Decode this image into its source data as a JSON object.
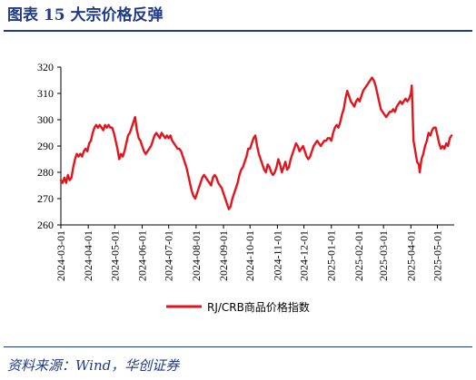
{
  "header": {
    "title": "图表 15   大宗价格反弹"
  },
  "footer": {
    "source": "资料来源：Wind，华创证券"
  },
  "chart_data": {
    "type": "line",
    "title": "图表 15   大宗价格反弹",
    "xlabel": "",
    "ylabel": "",
    "ylim": [
      260,
      320
    ],
    "yticks": [
      260,
      270,
      280,
      290,
      300,
      310,
      320
    ],
    "xlim": [
      "2024-03-01",
      "2025-05-20"
    ],
    "xticks": [
      "2024-03-01",
      "2024-04-01",
      "2024-05-01",
      "2024-06-01",
      "2024-07-01",
      "2024-08-01",
      "2024-09-01",
      "2024-10-01",
      "2024-11-01",
      "2024-12-01",
      "2025-01-01",
      "2025-02-01",
      "2025-03-01",
      "2025-04-01",
      "2025-05-01"
    ],
    "xtick_labels": [
      "2024-03-01",
      "2024-04-01",
      "2024-05-01",
      "2024-06-01",
      "2024-07-01",
      "2024-08-01",
      "2024-09-01",
      "2024-10-01",
      "2024-11-01",
      "2024-12-01",
      "2025-01-01",
      "2025-02-01",
      "2025-03-01",
      "2025-04-01",
      "2025-05-01"
    ],
    "grid": false,
    "legend_position": "bottom-center",
    "series": [
      {
        "name": "RJ/CRB商品价格指数",
        "color": "#e3141c",
        "points": [
          [
            "2024-03-01",
            277
          ],
          [
            "2024-03-03",
            276
          ],
          [
            "2024-03-05",
            278
          ],
          [
            "2024-03-07",
            276
          ],
          [
            "2024-03-09",
            279
          ],
          [
            "2024-03-11",
            277
          ],
          [
            "2024-03-13",
            278
          ],
          [
            "2024-03-15",
            282
          ],
          [
            "2024-03-17",
            285
          ],
          [
            "2024-03-19",
            287
          ],
          [
            "2024-03-21",
            286
          ],
          [
            "2024-03-23",
            287
          ],
          [
            "2024-03-25",
            286
          ],
          [
            "2024-03-27",
            288
          ],
          [
            "2024-03-29",
            289
          ],
          [
            "2024-03-31",
            288
          ],
          [
            "2024-04-02",
            291
          ],
          [
            "2024-04-04",
            292
          ],
          [
            "2024-04-06",
            295
          ],
          [
            "2024-04-08",
            297
          ],
          [
            "2024-04-10",
            298
          ],
          [
            "2024-04-12",
            297
          ],
          [
            "2024-04-14",
            298
          ],
          [
            "2024-04-16",
            297
          ],
          [
            "2024-04-18",
            296
          ],
          [
            "2024-04-20",
            298
          ],
          [
            "2024-04-22",
            297
          ],
          [
            "2024-04-24",
            298
          ],
          [
            "2024-04-26",
            297
          ],
          [
            "2024-04-28",
            297
          ],
          [
            "2024-04-30",
            295
          ],
          [
            "2024-05-02",
            292
          ],
          [
            "2024-05-04",
            289
          ],
          [
            "2024-05-06",
            285
          ],
          [
            "2024-05-08",
            287
          ],
          [
            "2024-05-10",
            286
          ],
          [
            "2024-05-12",
            288
          ],
          [
            "2024-05-14",
            291
          ],
          [
            "2024-05-16",
            294
          ],
          [
            "2024-05-18",
            295
          ],
          [
            "2024-05-20",
            297
          ],
          [
            "2024-05-22",
            299
          ],
          [
            "2024-05-24",
            301
          ],
          [
            "2024-05-26",
            296
          ],
          [
            "2024-05-28",
            293
          ],
          [
            "2024-05-30",
            292
          ],
          [
            "2024-06-01",
            290
          ],
          [
            "2024-06-03",
            288
          ],
          [
            "2024-06-05",
            287
          ],
          [
            "2024-06-07",
            288
          ],
          [
            "2024-06-09",
            289
          ],
          [
            "2024-06-11",
            290
          ],
          [
            "2024-06-13",
            292
          ],
          [
            "2024-06-15",
            294
          ],
          [
            "2024-06-17",
            295
          ],
          [
            "2024-06-19",
            294
          ],
          [
            "2024-06-21",
            293
          ],
          [
            "2024-06-23",
            295
          ],
          [
            "2024-06-25",
            294
          ],
          [
            "2024-06-27",
            293
          ],
          [
            "2024-06-29",
            294
          ],
          [
            "2024-07-01",
            293
          ],
          [
            "2024-07-03",
            294
          ],
          [
            "2024-07-05",
            292
          ],
          [
            "2024-07-07",
            291
          ],
          [
            "2024-07-09",
            290
          ],
          [
            "2024-07-11",
            289
          ],
          [
            "2024-07-13",
            289
          ],
          [
            "2024-07-15",
            288
          ],
          [
            "2024-07-17",
            286
          ],
          [
            "2024-07-19",
            284
          ],
          [
            "2024-07-21",
            282
          ],
          [
            "2024-07-23",
            279
          ],
          [
            "2024-07-25",
            276
          ],
          [
            "2024-07-27",
            273
          ],
          [
            "2024-07-29",
            271
          ],
          [
            "2024-07-31",
            270
          ],
          [
            "2024-08-02",
            272
          ],
          [
            "2024-08-04",
            274
          ],
          [
            "2024-08-06",
            276
          ],
          [
            "2024-08-08",
            278
          ],
          [
            "2024-08-10",
            279
          ],
          [
            "2024-08-12",
            278
          ],
          [
            "2024-08-14",
            277
          ],
          [
            "2024-08-16",
            276
          ],
          [
            "2024-08-18",
            275
          ],
          [
            "2024-08-20",
            278
          ],
          [
            "2024-08-22",
            279
          ],
          [
            "2024-08-24",
            278
          ],
          [
            "2024-08-26",
            276
          ],
          [
            "2024-08-28",
            275
          ],
          [
            "2024-08-30",
            274
          ],
          [
            "2024-09-01",
            272
          ],
          [
            "2024-09-03",
            270
          ],
          [
            "2024-09-05",
            268
          ],
          [
            "2024-09-07",
            266
          ],
          [
            "2024-09-09",
            267
          ],
          [
            "2024-09-11",
            270
          ],
          [
            "2024-09-13",
            272
          ],
          [
            "2024-09-15",
            274
          ],
          [
            "2024-09-17",
            276
          ],
          [
            "2024-09-19",
            279
          ],
          [
            "2024-09-21",
            281
          ],
          [
            "2024-09-23",
            282
          ],
          [
            "2024-09-25",
            284
          ],
          [
            "2024-09-27",
            286
          ],
          [
            "2024-09-29",
            289
          ],
          [
            "2024-10-01",
            289
          ],
          [
            "2024-10-03",
            291
          ],
          [
            "2024-10-05",
            293
          ],
          [
            "2024-10-07",
            294
          ],
          [
            "2024-10-09",
            290
          ],
          [
            "2024-10-11",
            287
          ],
          [
            "2024-10-13",
            285
          ],
          [
            "2024-10-15",
            283
          ],
          [
            "2024-10-17",
            281
          ],
          [
            "2024-10-19",
            280
          ],
          [
            "2024-10-21",
            283
          ],
          [
            "2024-10-23",
            282
          ],
          [
            "2024-10-25",
            280
          ],
          [
            "2024-10-27",
            279
          ],
          [
            "2024-10-29",
            280
          ],
          [
            "2024-10-31",
            282
          ],
          [
            "2024-11-02",
            285
          ],
          [
            "2024-11-04",
            283
          ],
          [
            "2024-11-06",
            280
          ],
          [
            "2024-11-08",
            282
          ],
          [
            "2024-11-10",
            284
          ],
          [
            "2024-11-12",
            281
          ],
          [
            "2024-11-14",
            282
          ],
          [
            "2024-11-16",
            285
          ],
          [
            "2024-11-18",
            287
          ],
          [
            "2024-11-20",
            289
          ],
          [
            "2024-11-22",
            291
          ],
          [
            "2024-11-24",
            290
          ],
          [
            "2024-11-26",
            288
          ],
          [
            "2024-11-28",
            289
          ],
          [
            "2024-11-30",
            290
          ],
          [
            "2024-12-02",
            288
          ],
          [
            "2024-12-04",
            286
          ],
          [
            "2024-12-06",
            285
          ],
          [
            "2024-12-08",
            286
          ],
          [
            "2024-12-10",
            288
          ],
          [
            "2024-12-12",
            290
          ],
          [
            "2024-12-14",
            291
          ],
          [
            "2024-12-16",
            292
          ],
          [
            "2024-12-18",
            291
          ],
          [
            "2024-12-20",
            290
          ],
          [
            "2024-12-22",
            291
          ],
          [
            "2024-12-24",
            292
          ],
          [
            "2024-12-26",
            292
          ],
          [
            "2024-12-28",
            293
          ],
          [
            "2024-12-30",
            293
          ],
          [
            "2025-01-01",
            292
          ],
          [
            "2025-01-03",
            295
          ],
          [
            "2025-01-05",
            297
          ],
          [
            "2025-01-07",
            298
          ],
          [
            "2025-01-09",
            297
          ],
          [
            "2025-01-11",
            299
          ],
          [
            "2025-01-13",
            302
          ],
          [
            "2025-01-15",
            304
          ],
          [
            "2025-01-17",
            308
          ],
          [
            "2025-01-19",
            311
          ],
          [
            "2025-01-21",
            309
          ],
          [
            "2025-01-23",
            307
          ],
          [
            "2025-01-25",
            306
          ],
          [
            "2025-01-27",
            305
          ],
          [
            "2025-01-29",
            307
          ],
          [
            "2025-01-31",
            308
          ],
          [
            "2025-02-02",
            307
          ],
          [
            "2025-02-04",
            309
          ],
          [
            "2025-02-06",
            311
          ],
          [
            "2025-02-08",
            312
          ],
          [
            "2025-02-10",
            313
          ],
          [
            "2025-02-12",
            314
          ],
          [
            "2025-02-14",
            315
          ],
          [
            "2025-02-16",
            316
          ],
          [
            "2025-02-18",
            315
          ],
          [
            "2025-02-20",
            313
          ],
          [
            "2025-02-22",
            310
          ],
          [
            "2025-02-24",
            307
          ],
          [
            "2025-02-26",
            304
          ],
          [
            "2025-02-28",
            303
          ],
          [
            "2025-03-02",
            302
          ],
          [
            "2025-03-04",
            301
          ],
          [
            "2025-03-06",
            302
          ],
          [
            "2025-03-08",
            303
          ],
          [
            "2025-03-10",
            303
          ],
          [
            "2025-03-12",
            304
          ],
          [
            "2025-03-14",
            303
          ],
          [
            "2025-03-16",
            305
          ],
          [
            "2025-03-18",
            306
          ],
          [
            "2025-03-20",
            307
          ],
          [
            "2025-03-22",
            306
          ],
          [
            "2025-03-24",
            307
          ],
          [
            "2025-03-26",
            308
          ],
          [
            "2025-03-28",
            307
          ],
          [
            "2025-03-30",
            308
          ],
          [
            "2025-04-01",
            310
          ],
          [
            "2025-04-02",
            313
          ],
          [
            "2025-04-03",
            302
          ],
          [
            "2025-04-04",
            292
          ],
          [
            "2025-04-06",
            288
          ],
          [
            "2025-04-08",
            284
          ],
          [
            "2025-04-10",
            283
          ],
          [
            "2025-04-11",
            280
          ],
          [
            "2025-04-13",
            285
          ],
          [
            "2025-04-15",
            287
          ],
          [
            "2025-04-17",
            290
          ],
          [
            "2025-04-19",
            292
          ],
          [
            "2025-04-21",
            295
          ],
          [
            "2025-04-23",
            294
          ],
          [
            "2025-04-25",
            296
          ],
          [
            "2025-04-27",
            297
          ],
          [
            "2025-04-29",
            297
          ],
          [
            "2025-05-01",
            294
          ],
          [
            "2025-05-03",
            291
          ],
          [
            "2025-05-05",
            289
          ],
          [
            "2025-05-07",
            290
          ],
          [
            "2025-05-09",
            289
          ],
          [
            "2025-05-11",
            291
          ],
          [
            "2025-05-13",
            290
          ],
          [
            "2025-05-15",
            293
          ],
          [
            "2025-05-17",
            294
          ]
        ]
      }
    ]
  }
}
